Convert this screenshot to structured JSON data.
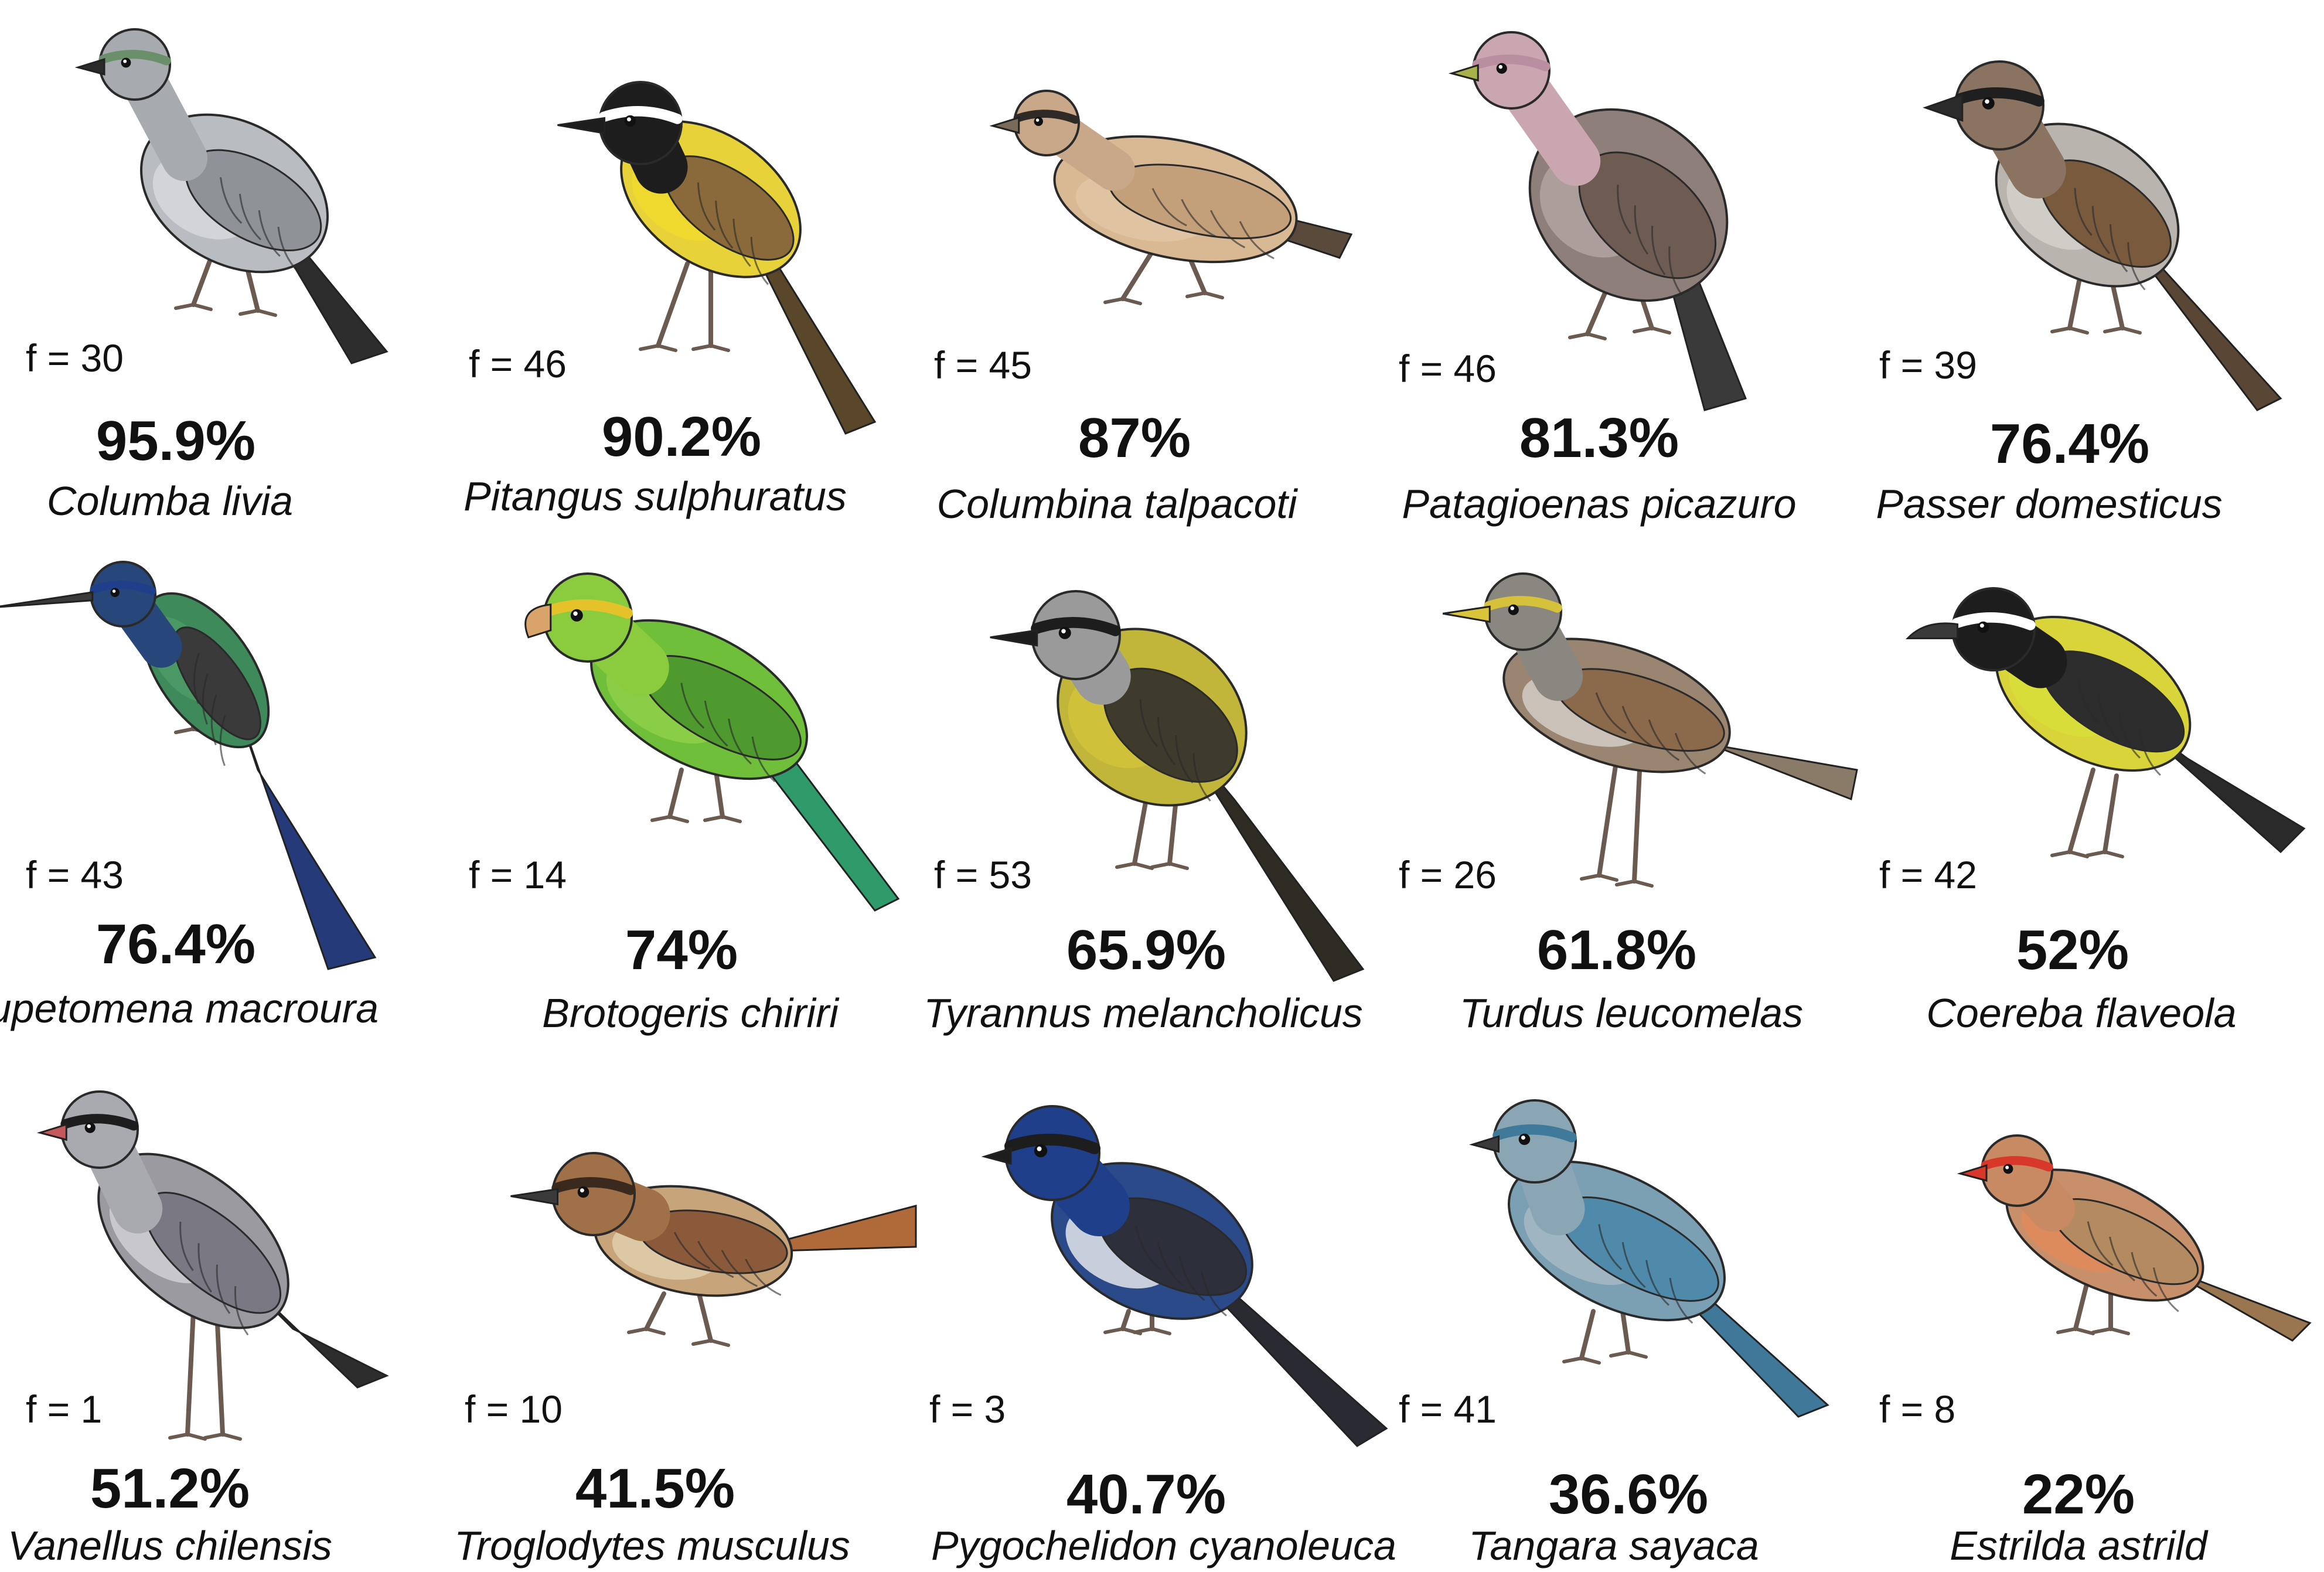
{
  "birds": [
    {
      "f": "f = 30",
      "percent": "95.9%",
      "species": "Columba livia",
      "icon": "pigeon-icon",
      "colors": {
        "body": "#b9bcc0",
        "wing": "#8f9398",
        "head": "#a7abb0",
        "accent": "#6a8f6a",
        "belly": "#d6d8da",
        "beak": "#2a2a2a",
        "tail": "#2d2d2d"
      }
    },
    {
      "f": "f = 46",
      "percent": "90.2%",
      "species": "Pitangus sulphuratus",
      "icon": "flycatcher-icon",
      "colors": {
        "body": "#e8d23a",
        "wing": "#8a6a3a",
        "head": "#1d1d1d",
        "accent": "#ffffff",
        "belly": "#f1da2e",
        "beak": "#1d1d1d",
        "tail": "#5a4628"
      }
    },
    {
      "f": "f = 45",
      "percent": "87%",
      "species": "Columbina talpacoti",
      "icon": "ground-dove-icon",
      "colors": {
        "body": "#d8b994",
        "wing": "#c4a07a",
        "head": "#c9a789",
        "accent": "#2f2a25",
        "belly": "#e2c6a4",
        "beak": "#7a6a5a",
        "tail": "#5a4a3c"
      }
    },
    {
      "f": "f = 46",
      "percent": "81.3%",
      "species": "Patagioenas picazuro",
      "icon": "pigeon-icon",
      "colors": {
        "body": "#8f7f7a",
        "wing": "#6e5c52",
        "head": "#c9a6b0",
        "accent": "#b88ea0",
        "belly": "#b1a3a0",
        "beak": "#a8b24a",
        "tail": "#3a3a3a"
      }
    },
    {
      "f": "f = 39",
      "percent": "76.4%",
      "species": "Passer domesticus",
      "icon": "sparrow-icon",
      "colors": {
        "body": "#b9b4ad",
        "wing": "#7a5a3d",
        "head": "#8a7360",
        "accent": "#1f1f1f",
        "belly": "#d4d0ca",
        "beak": "#2a2a2a",
        "tail": "#5a4634"
      }
    },
    {
      "f": "f = 43",
      "percent": "76.4%",
      "species": "Eupetomena macroura",
      "icon": "hummingbird-icon",
      "colors": {
        "body": "#3f8a5a",
        "wing": "#3a3a3a",
        "head": "#27467a",
        "accent": "#1f3f8a",
        "belly": "#4e9a66",
        "beak": "#3a3a3a",
        "tail": "#253a78"
      }
    },
    {
      "f": "f = 14",
      "percent": "74%",
      "species": "Brotogeris chiriri",
      "icon": "parakeet-icon",
      "colors": {
        "body": "#6fbf3a",
        "wing": "#4f9a2f",
        "head": "#8acc3e",
        "accent": "#e6c22a",
        "belly": "#8fcf4a",
        "beak": "#d9a46a",
        "tail": "#2f9a6a"
      }
    },
    {
      "f": "f = 53",
      "percent": "65.9%",
      "species": "Tyrannus melancholicus",
      "icon": "kingbird-icon",
      "colors": {
        "body": "#c2b63a",
        "wing": "#3e3a2c",
        "head": "#9a9a9a",
        "accent": "#1d1d1d",
        "belly": "#d1c33a",
        "beak": "#1d1d1d",
        "tail": "#2f2c24"
      }
    },
    {
      "f": "f = 26",
      "percent": "61.8%",
      "species": "Turdus leucomelas",
      "icon": "thrush-icon",
      "colors": {
        "body": "#9a8670",
        "wing": "#8a6a4a",
        "head": "#8a8680",
        "accent": "#d6c23a",
        "belly": "#d2cdc4",
        "beak": "#d9c43a",
        "tail": "#8a7a68"
      }
    },
    {
      "f": "f = 42",
      "percent": "52%",
      "species": "Coereba flaveola",
      "icon": "bananaquit-icon",
      "colors": {
        "body": "#d8d43a",
        "wing": "#2d2d2d",
        "head": "#1d1d1d",
        "accent": "#ffffff",
        "belly": "#d9de3a",
        "beak": "#3a3a3a",
        "tail": "#2a2a2a"
      }
    },
    {
      "f": "f = 1",
      "percent": "51.2%",
      "species": "Vanellus chilensis",
      "icon": "lapwing-icon",
      "colors": {
        "body": "#9a9aa0",
        "wing": "#7a7882",
        "head": "#a8aab0",
        "accent": "#1d1d1d",
        "belly": "#d0d0d4",
        "beak": "#c4585a",
        "tail": "#2d2d2d"
      }
    },
    {
      "f": "f = 10",
      "percent": "41.5%",
      "species": "Troglodytes musculus",
      "icon": "wren-icon",
      "colors": {
        "body": "#c8a47a",
        "wing": "#8a5a3a",
        "head": "#a07048",
        "accent": "#3a2a1e",
        "belly": "#e0cfae",
        "beak": "#3a3a3a",
        "tail": "#b06a3a"
      }
    },
    {
      "f": "f = 3",
      "percent": "40.7%",
      "species": "Pygochelidon cyanoleuca",
      "icon": "swallow-icon",
      "colors": {
        "body": "#2a4a8a",
        "wing": "#2d2f3a",
        "head": "#1f3f8a",
        "accent": "#1d1d1d",
        "belly": "#e4e6ea",
        "beak": "#1d1d1d",
        "tail": "#2a2a32"
      }
    },
    {
      "f": "f = 41",
      "percent": "36.6%",
      "species": "Tangara sayaca",
      "icon": "tanager-icon",
      "colors": {
        "body": "#7ba0b4",
        "wing": "#4f8aaa",
        "head": "#8aa6b4",
        "accent": "#3f7a9a",
        "belly": "#a6bac4",
        "beak": "#3a3a3a",
        "tail": "#3f7898"
      }
    },
    {
      "f": "f = 8",
      "percent": "22%",
      "species": "Estrilda astrild",
      "icon": "waxbill-icon",
      "colors": {
        "body": "#c8906a",
        "wing": "#b48a60",
        "head": "#c88a62",
        "accent": "#d8382a",
        "belly": "#e08a5a",
        "beak": "#d8382a",
        "tail": "#9a7650"
      }
    }
  ]
}
